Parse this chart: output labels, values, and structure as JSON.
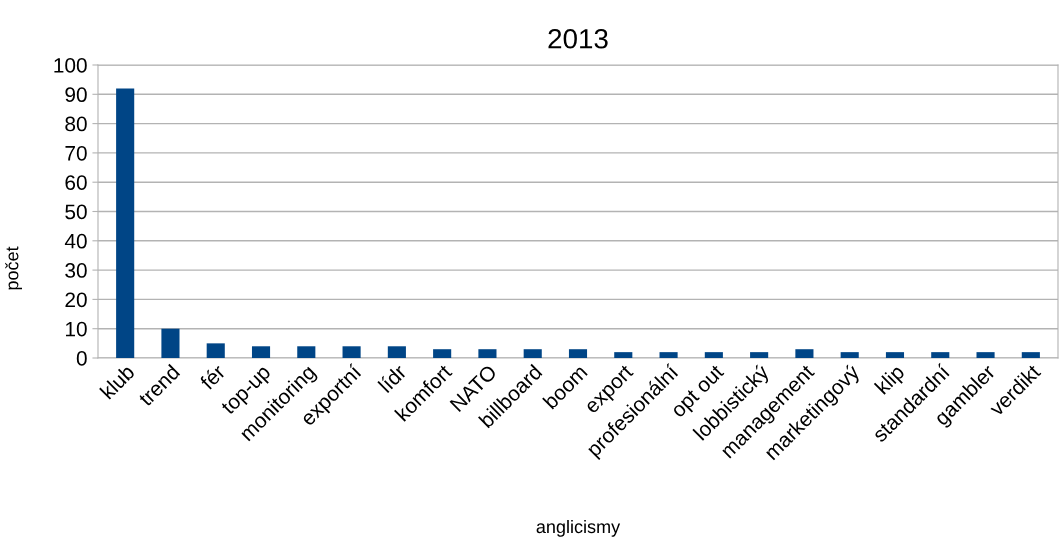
{
  "chart_data": {
    "type": "bar",
    "title": "2013",
    "xlabel": "anglicismy",
    "ylabel": "počet",
    "categories": [
      "klub",
      "trend",
      "fér",
      "top-up",
      "monitoring",
      "exportní",
      "lídr",
      "komfort",
      "NATO",
      "billboard",
      "boom",
      "export",
      "profesionální",
      "opt out",
      "lobbistický",
      "management",
      "marketingový",
      "klip",
      "standardní",
      "gambler",
      "verdikt"
    ],
    "values": [
      92,
      10,
      5,
      4,
      4,
      4,
      4,
      3,
      3,
      3,
      3,
      2,
      2,
      2,
      2,
      3,
      2,
      2,
      2,
      2,
      2
    ],
    "color": "#004586",
    "ylim": [
      0,
      100
    ],
    "yticks": [
      0,
      10,
      20,
      30,
      40,
      50,
      60,
      70,
      80,
      90,
      100
    ],
    "grid": "y",
    "legend": false
  }
}
